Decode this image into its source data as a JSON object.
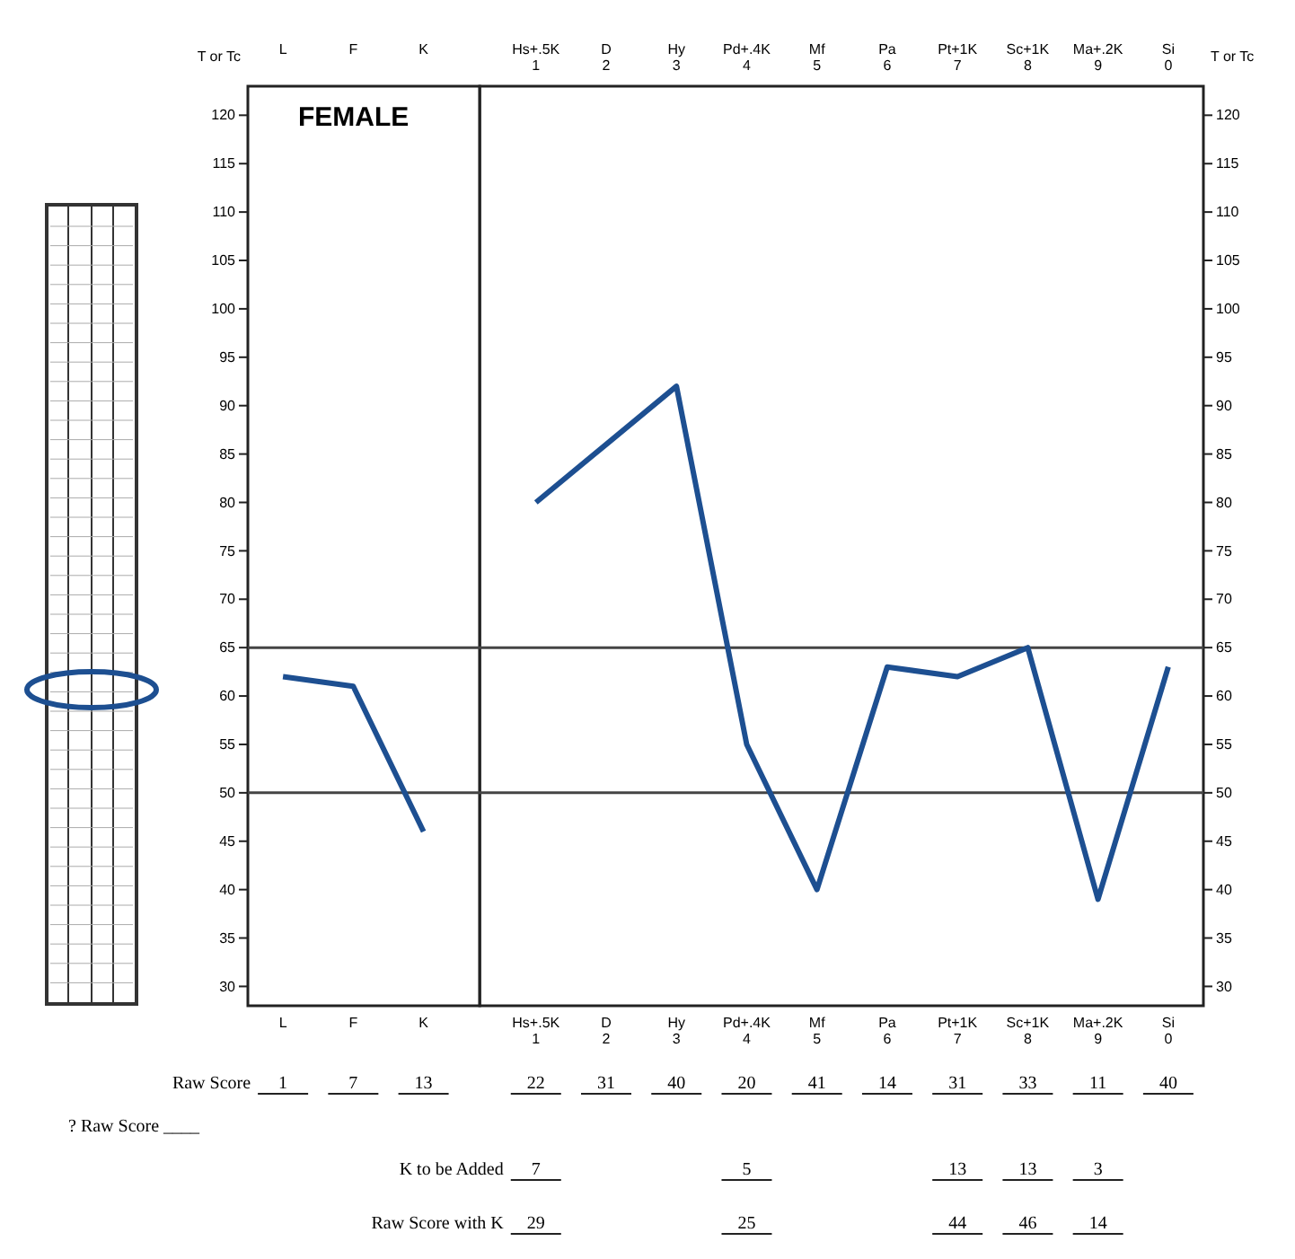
{
  "chart_data": {
    "type": "line",
    "ylabel": "T or Tc",
    "y2label": "T or Tc",
    "categories": [
      "L",
      "F",
      "K",
      "Hs+.5K 1",
      "D 2",
      "Hy 3",
      "Pd+.4K 4",
      "Mf 5",
      "Pa 6",
      "Pt+1K 7",
      "Sc+1K 8",
      "Ma+.2K 9",
      "Si 0"
    ],
    "series": [
      {
        "color": "#1d4f91",
        "values": [
          62,
          61,
          46,
          null,
          null,
          null,
          null,
          null,
          null,
          null,
          null,
          null,
          null
        ]
      },
      {
        "color": "#1d4f91",
        "values": [
          null,
          null,
          null,
          80,
          86,
          92,
          55,
          40,
          63,
          62,
          65,
          39,
          63
        ]
      }
    ],
    "ylim": [
      28,
      123
    ],
    "yticks": [
      30,
      35,
      40,
      45,
      50,
      55,
      60,
      65,
      70,
      75,
      80,
      85,
      90,
      95,
      100,
      105,
      110,
      115,
      120
    ],
    "y2lim": [
      28,
      123
    ],
    "y2ticks": [
      30,
      35,
      40,
      45,
      50,
      55,
      60,
      65,
      70,
      75,
      80,
      85,
      90,
      95,
      100,
      105,
      110,
      115,
      120
    ],
    "ref_lines": [
      {
        "axis": "y",
        "value": 65,
        "color": "#444444"
      },
      {
        "axis": "y",
        "value": 50,
        "color": "#444444"
      }
    ],
    "grid": false,
    "legend": false,
    "marker": "none",
    "line_style": "solid",
    "annotations": [
      "FEMALE",
      "Raw Score",
      "1",
      "7",
      "13",
      "22",
      "31",
      "40",
      "20",
      "41",
      "14",
      "31",
      "33",
      "11",
      "40",
      "? Raw Score ____",
      "K to be Added",
      "7",
      "5",
      "13",
      "13",
      "3",
      "Raw Score with K",
      "29",
      "25",
      "44",
      "46",
      "14"
    ]
  }
}
